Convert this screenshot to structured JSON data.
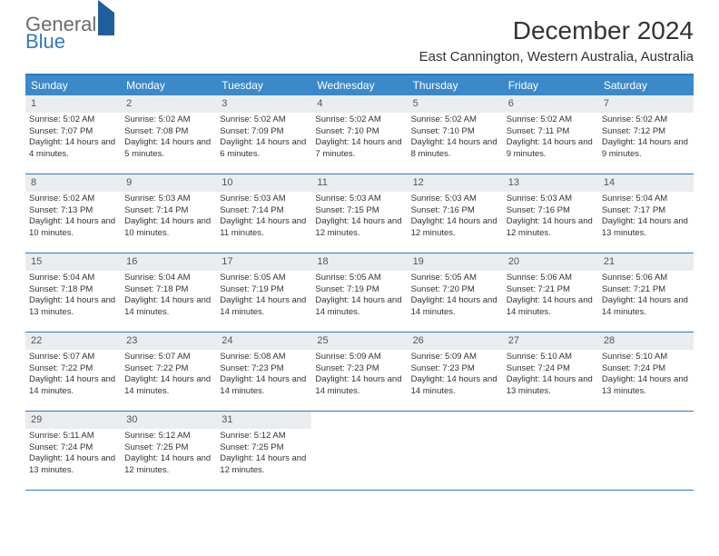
{
  "brand": {
    "word1": "General",
    "word2": "Blue"
  },
  "title": "December 2024",
  "location": "East Cannington, Western Australia, Australia",
  "colors": {
    "header_bg": "#3b89c9",
    "border": "#2f7ac0",
    "daynum_bg": "#e9edf0",
    "text": "#333333",
    "brand_gray": "#6b6b6b",
    "brand_blue": "#2f7ac0"
  },
  "typography": {
    "title_fontsize": 28,
    "location_fontsize": 15,
    "dow_fontsize": 12,
    "daynum_fontsize": 11,
    "body_fontsize": 9.5
  },
  "days_of_week": [
    "Sunday",
    "Monday",
    "Tuesday",
    "Wednesday",
    "Thursday",
    "Friday",
    "Saturday"
  ],
  "weeks": [
    [
      {
        "n": "1",
        "sr": "5:02 AM",
        "ss": "7:07 PM",
        "dl": "14 hours and 4 minutes."
      },
      {
        "n": "2",
        "sr": "5:02 AM",
        "ss": "7:08 PM",
        "dl": "14 hours and 5 minutes."
      },
      {
        "n": "3",
        "sr": "5:02 AM",
        "ss": "7:09 PM",
        "dl": "14 hours and 6 minutes."
      },
      {
        "n": "4",
        "sr": "5:02 AM",
        "ss": "7:10 PM",
        "dl": "14 hours and 7 minutes."
      },
      {
        "n": "5",
        "sr": "5:02 AM",
        "ss": "7:10 PM",
        "dl": "14 hours and 8 minutes."
      },
      {
        "n": "6",
        "sr": "5:02 AM",
        "ss": "7:11 PM",
        "dl": "14 hours and 9 minutes."
      },
      {
        "n": "7",
        "sr": "5:02 AM",
        "ss": "7:12 PM",
        "dl": "14 hours and 9 minutes."
      }
    ],
    [
      {
        "n": "8",
        "sr": "5:02 AM",
        "ss": "7:13 PM",
        "dl": "14 hours and 10 minutes."
      },
      {
        "n": "9",
        "sr": "5:03 AM",
        "ss": "7:14 PM",
        "dl": "14 hours and 10 minutes."
      },
      {
        "n": "10",
        "sr": "5:03 AM",
        "ss": "7:14 PM",
        "dl": "14 hours and 11 minutes."
      },
      {
        "n": "11",
        "sr": "5:03 AM",
        "ss": "7:15 PM",
        "dl": "14 hours and 12 minutes."
      },
      {
        "n": "12",
        "sr": "5:03 AM",
        "ss": "7:16 PM",
        "dl": "14 hours and 12 minutes."
      },
      {
        "n": "13",
        "sr": "5:03 AM",
        "ss": "7:16 PM",
        "dl": "14 hours and 12 minutes."
      },
      {
        "n": "14",
        "sr": "5:04 AM",
        "ss": "7:17 PM",
        "dl": "14 hours and 13 minutes."
      }
    ],
    [
      {
        "n": "15",
        "sr": "5:04 AM",
        "ss": "7:18 PM",
        "dl": "14 hours and 13 minutes."
      },
      {
        "n": "16",
        "sr": "5:04 AM",
        "ss": "7:18 PM",
        "dl": "14 hours and 14 minutes."
      },
      {
        "n": "17",
        "sr": "5:05 AM",
        "ss": "7:19 PM",
        "dl": "14 hours and 14 minutes."
      },
      {
        "n": "18",
        "sr": "5:05 AM",
        "ss": "7:19 PM",
        "dl": "14 hours and 14 minutes."
      },
      {
        "n": "19",
        "sr": "5:05 AM",
        "ss": "7:20 PM",
        "dl": "14 hours and 14 minutes."
      },
      {
        "n": "20",
        "sr": "5:06 AM",
        "ss": "7:21 PM",
        "dl": "14 hours and 14 minutes."
      },
      {
        "n": "21",
        "sr": "5:06 AM",
        "ss": "7:21 PM",
        "dl": "14 hours and 14 minutes."
      }
    ],
    [
      {
        "n": "22",
        "sr": "5:07 AM",
        "ss": "7:22 PM",
        "dl": "14 hours and 14 minutes."
      },
      {
        "n": "23",
        "sr": "5:07 AM",
        "ss": "7:22 PM",
        "dl": "14 hours and 14 minutes."
      },
      {
        "n": "24",
        "sr": "5:08 AM",
        "ss": "7:23 PM",
        "dl": "14 hours and 14 minutes."
      },
      {
        "n": "25",
        "sr": "5:09 AM",
        "ss": "7:23 PM",
        "dl": "14 hours and 14 minutes."
      },
      {
        "n": "26",
        "sr": "5:09 AM",
        "ss": "7:23 PM",
        "dl": "14 hours and 14 minutes."
      },
      {
        "n": "27",
        "sr": "5:10 AM",
        "ss": "7:24 PM",
        "dl": "14 hours and 13 minutes."
      },
      {
        "n": "28",
        "sr": "5:10 AM",
        "ss": "7:24 PM",
        "dl": "14 hours and 13 minutes."
      }
    ],
    [
      {
        "n": "29",
        "sr": "5:11 AM",
        "ss": "7:24 PM",
        "dl": "14 hours and 13 minutes."
      },
      {
        "n": "30",
        "sr": "5:12 AM",
        "ss": "7:25 PM",
        "dl": "14 hours and 12 minutes."
      },
      {
        "n": "31",
        "sr": "5:12 AM",
        "ss": "7:25 PM",
        "dl": "14 hours and 12 minutes."
      },
      null,
      null,
      null,
      null
    ]
  ],
  "labels": {
    "sunrise": "Sunrise:",
    "sunset": "Sunset:",
    "daylight": "Daylight:"
  }
}
